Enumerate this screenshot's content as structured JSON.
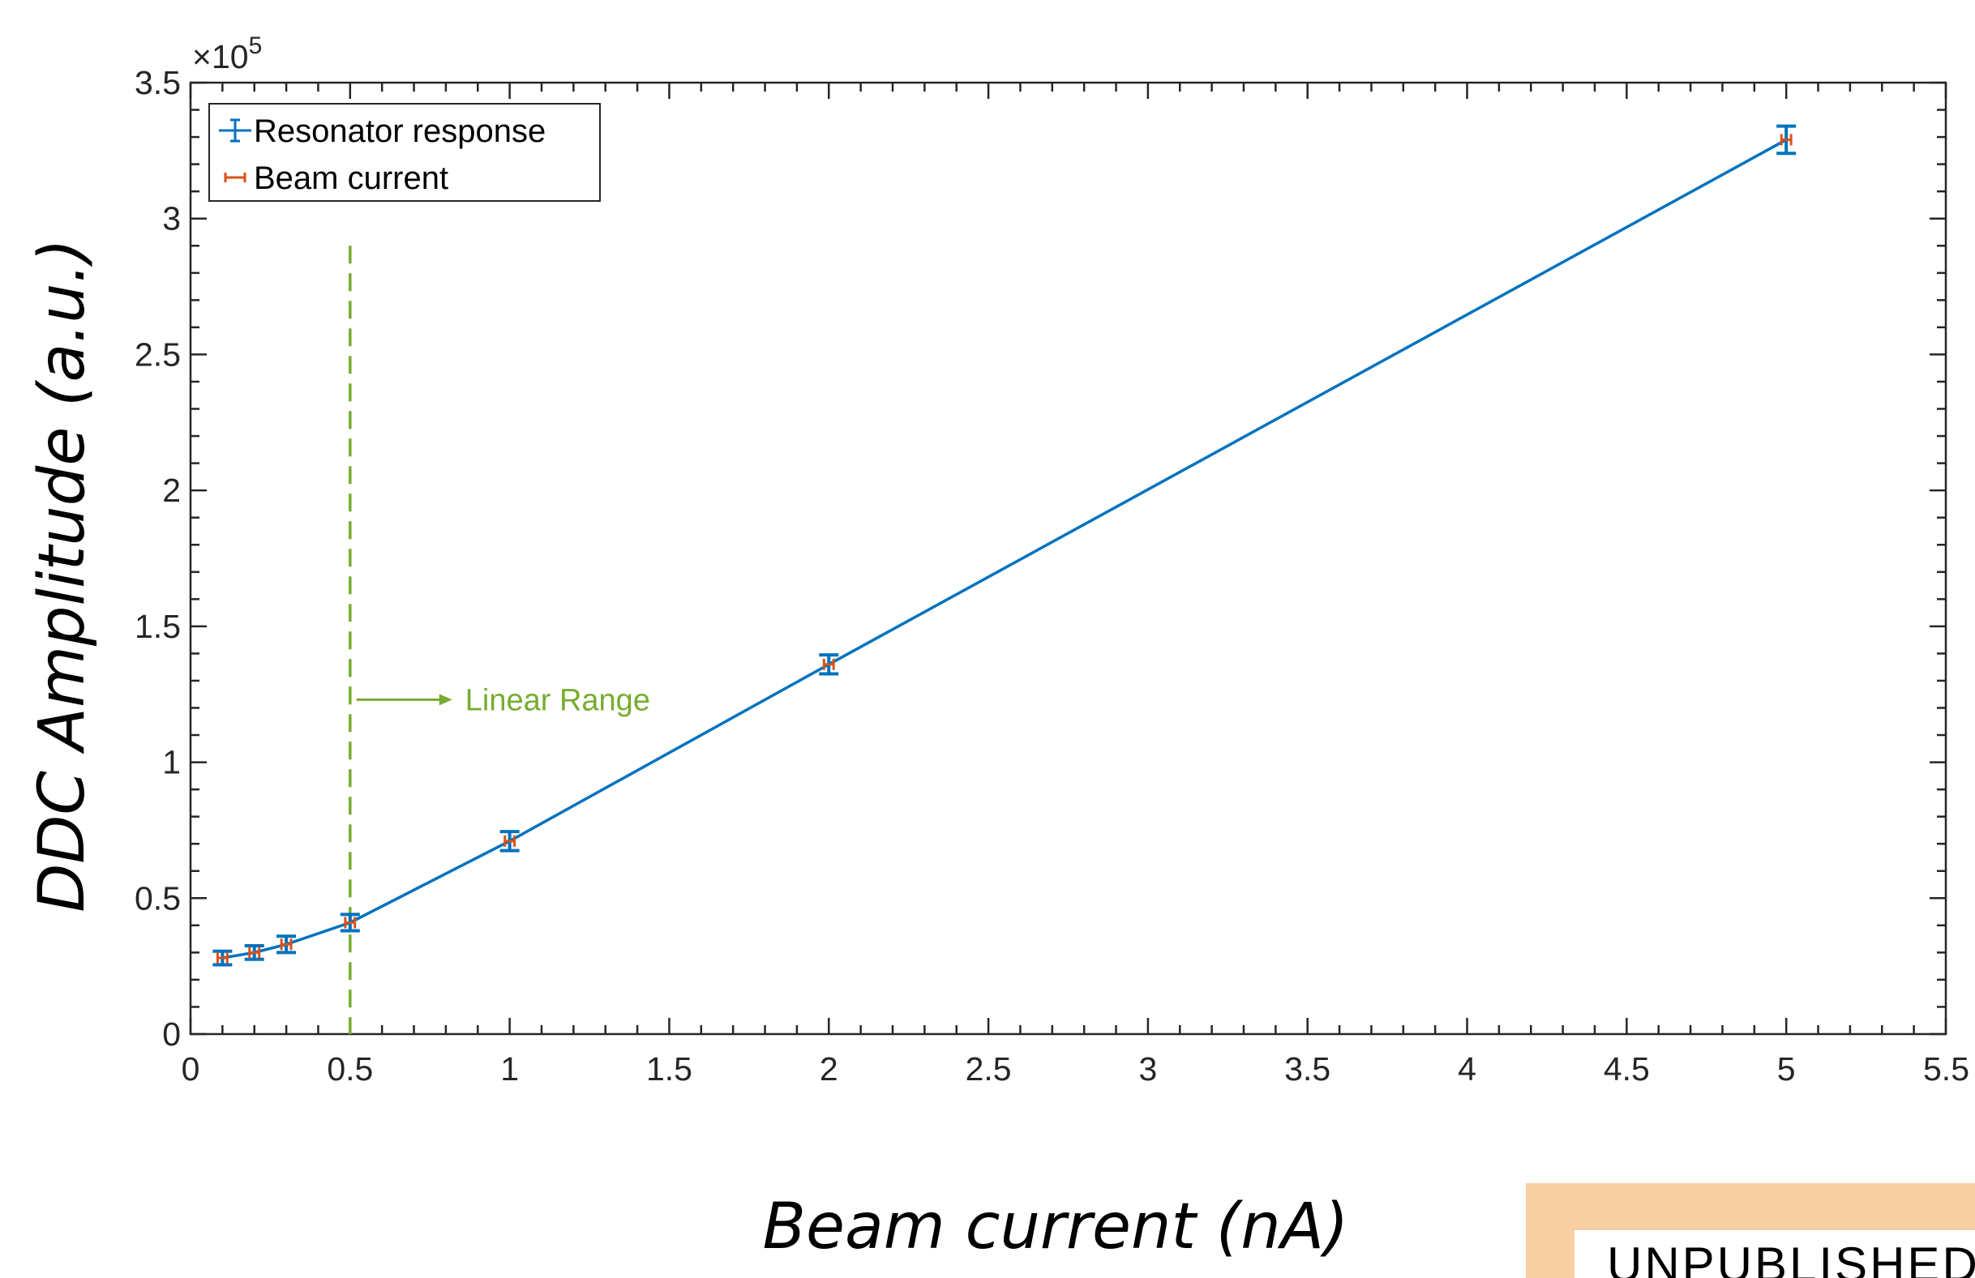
{
  "chart_data": {
    "type": "scatter",
    "xlabel": "Beam current (nA)",
    "ylabel": "DDC Amplitude (a.u.)",
    "y_multiplier_label": "×10^5",
    "xlim": [
      0,
      5.5
    ],
    "ylim": [
      0,
      350000
    ],
    "xticks": [
      "0",
      "0.5",
      "1",
      "1.5",
      "2",
      "2.5",
      "3",
      "3.5",
      "4",
      "4.5",
      "5",
      "5.5"
    ],
    "yticks": [
      "0",
      "0.5",
      "1",
      "1.5",
      "2",
      "2.5",
      "3",
      "3.5"
    ],
    "grid": false,
    "legend_position": "top-left",
    "series": [
      {
        "name": "Resonator response",
        "color": "#0072bd",
        "x": [
          0.1,
          0.2,
          0.3,
          0.5,
          1,
          2,
          5
        ],
        "y": [
          28000,
          30000,
          33000,
          41000,
          71000,
          136000,
          329000
        ],
        "yerr": [
          2500,
          2500,
          3000,
          3000,
          3500,
          3500,
          5000
        ]
      },
      {
        "name": "Beam current",
        "color": "#d95319",
        "x": [
          0.1,
          0.2,
          0.3,
          0.5,
          1,
          2,
          5
        ],
        "y": [
          28000,
          30000,
          33000,
          41000,
          71000,
          136000,
          329000
        ],
        "xerr": [
          0.01,
          0.01,
          0.01,
          0.01,
          0.01,
          0.01,
          0.01
        ]
      }
    ],
    "annotations": [
      {
        "type": "vertical-dashed-line",
        "x": 0.5,
        "y_top": 290000,
        "color": "#77ac30"
      },
      {
        "type": "arrow",
        "text": "Linear Range",
        "x_start": 0.52,
        "x_end": 0.82,
        "y": 123000,
        "color": "#77ac30"
      }
    ]
  },
  "badge": {
    "text": "UNPUBLISHED"
  }
}
